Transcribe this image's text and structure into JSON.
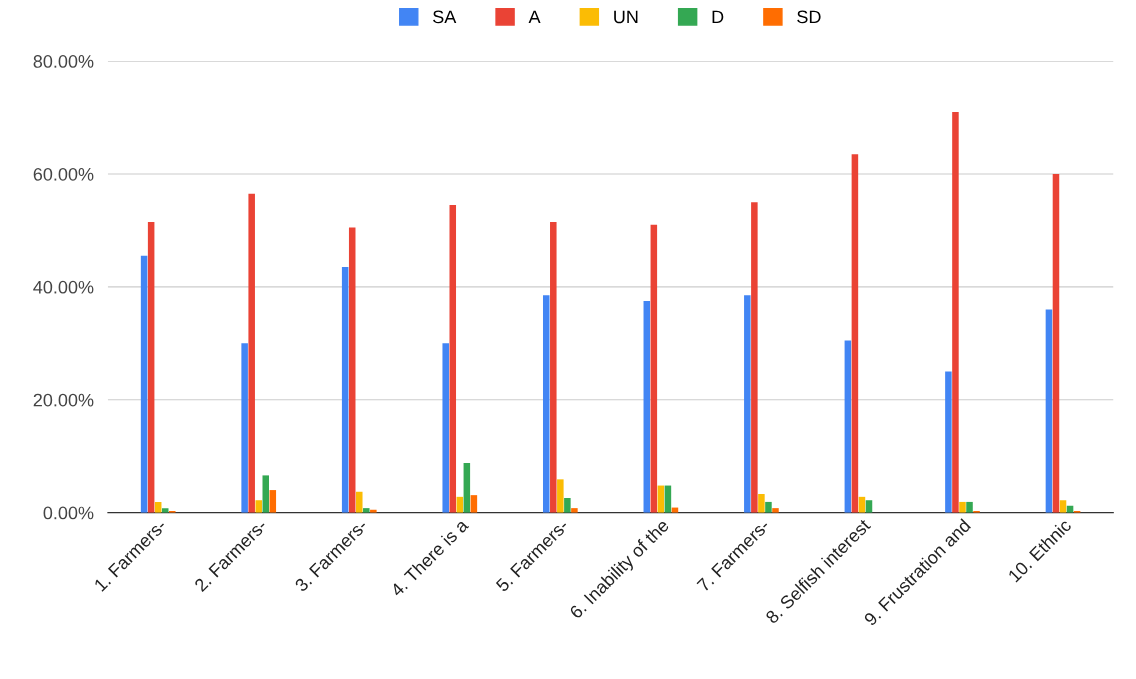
{
  "chart_data": {
    "type": "bar",
    "categories": [
      "1. Farmers-",
      "2. Farmers-",
      "3. Farmers-",
      "4. There is a",
      "5. Farmers-",
      "6. Inability of the",
      "7. Farmers-",
      "8. Selfish interest",
      "9. Frustration and",
      "10. Ethnic"
    ],
    "series": [
      {
        "name": "SA",
        "color": "#4285f4",
        "values": [
          45.5,
          30,
          43.5,
          30,
          38.5,
          37.5,
          38.5,
          30.5,
          25,
          36
        ]
      },
      {
        "name": "A",
        "color": "#ea4335",
        "values": [
          51.5,
          56.5,
          50.5,
          54.5,
          51.5,
          51,
          55,
          63.5,
          71,
          60
        ]
      },
      {
        "name": "UN",
        "color": "#fbbc04",
        "values": [
          1.9,
          2.2,
          3.7,
          2.8,
          5.9,
          4.8,
          3.3,
          2.8,
          1.9,
          2.2
        ]
      },
      {
        "name": "D",
        "color": "#34a853",
        "values": [
          0.8,
          6.6,
          0.8,
          8.8,
          2.6,
          4.8,
          1.9,
          2.2,
          1.9,
          1.2
        ]
      },
      {
        "name": "SD",
        "color": "#ff6d01",
        "values": [
          0.3,
          4,
          0.5,
          3.1,
          0.8,
          0.9,
          0.8,
          null,
          0.3,
          0.3
        ]
      }
    ],
    "ylim": [
      0,
      80
    ],
    "yticks": [
      {
        "value": 0,
        "label": "0.00%"
      },
      {
        "value": 20,
        "label": "20.00%"
      },
      {
        "value": 40,
        "label": "40.00%"
      },
      {
        "value": 60,
        "label": "60.00%"
      },
      {
        "value": 80,
        "label": "80.00%"
      }
    ],
    "grid": "y",
    "legend": "top"
  }
}
